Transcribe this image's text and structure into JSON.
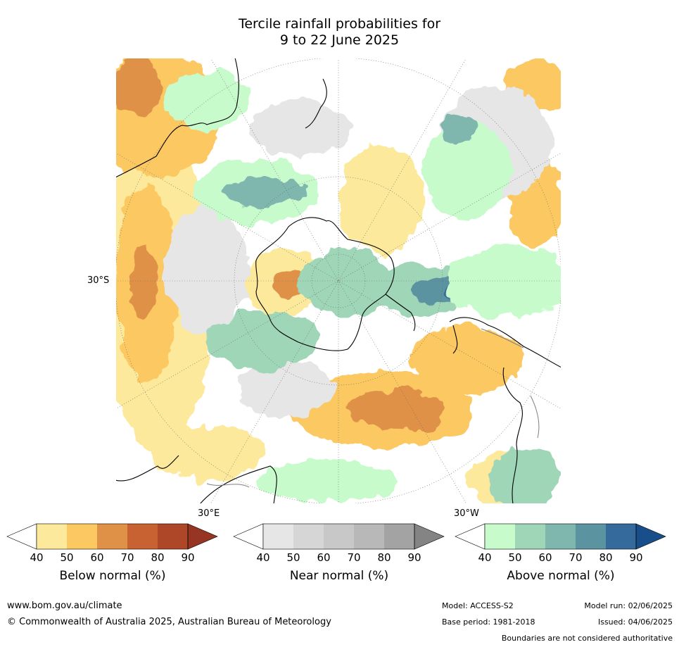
{
  "title": {
    "line1": "Tercile rainfall probabilities for",
    "line2": "9 to 22 June 2025"
  },
  "map": {
    "lat_label": "30°S",
    "lon_label_e": "30°E",
    "lon_label_w": "30°W",
    "colors": {
      "coast": "#000000",
      "border": "#808080",
      "grid": "#666666"
    }
  },
  "colorbars": [
    {
      "label": "Below normal (%)",
      "ticks": [
        "40",
        "50",
        "60",
        "70",
        "80",
        "90"
      ],
      "under_color": "#ffffff",
      "colors": [
        "#fde99b",
        "#fbc862",
        "#df9247",
        "#c96232",
        "#ae4727"
      ],
      "over_color": "#953522"
    },
    {
      "label": "Near normal (%)",
      "ticks": [
        "40",
        "50",
        "60",
        "70",
        "80",
        "90"
      ],
      "under_color": "#ffffff",
      "colors": [
        "#e6e6e6",
        "#d6d6d6",
        "#c8c8c8",
        "#b8b8b8",
        "#a3a3a3"
      ],
      "over_color": "#848484"
    },
    {
      "label": "Above normal (%)",
      "ticks": [
        "40",
        "50",
        "60",
        "70",
        "80",
        "90"
      ],
      "under_color": "#ffffff",
      "colors": [
        "#c8fbcc",
        "#a0d6b8",
        "#7fb7ae",
        "#5c93a1",
        "#356a9c"
      ],
      "over_color": "#184f8a"
    }
  ],
  "footer": {
    "website": "www.bom.gov.au/climate",
    "copyright": "© Commonwealth of Australia 2025, Australian Bureau of Meteorology",
    "model": "Model: ACCESS-S2",
    "model_run": "Model run: 02/06/2025",
    "base_period": "Base period: 1981-2018",
    "issued": "Issued: 04/06/2025",
    "disclaimer": "Boundaries are not considered authoritative"
  }
}
